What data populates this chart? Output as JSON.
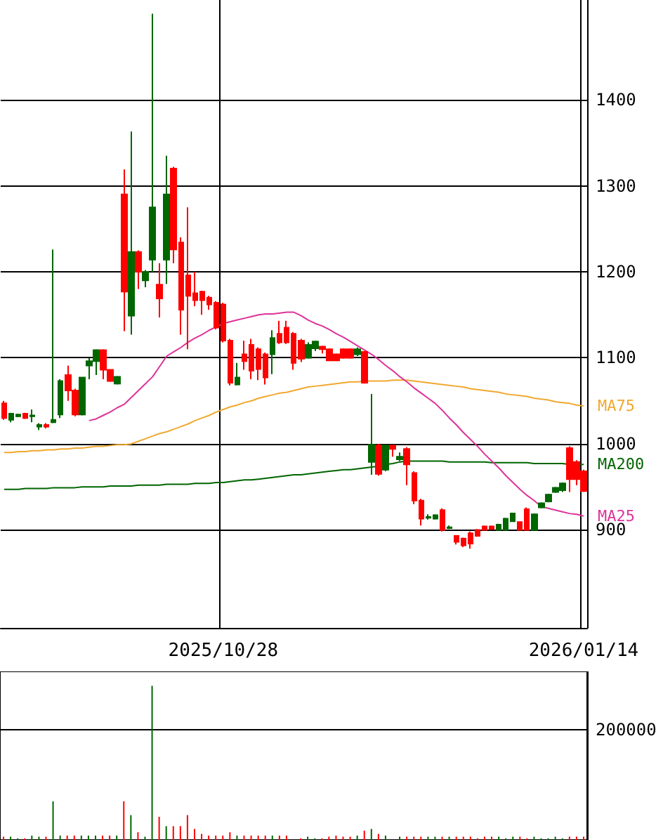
{
  "chart_data": [
    {
      "type": "candlestick",
      "categories": [
        null,
        null,
        null,
        null,
        null,
        null,
        null,
        null,
        null,
        null,
        null,
        null,
        null,
        null,
        null,
        null,
        null,
        null,
        null,
        null,
        null,
        null,
        null,
        null,
        null,
        null,
        null,
        null,
        null,
        null,
        null,
        "2025/10/28",
        null,
        null,
        null,
        null,
        null,
        null,
        null,
        null,
        null,
        null,
        null,
        null,
        null,
        null,
        null,
        null,
        null,
        null,
        null,
        null,
        null,
        null,
        null,
        null,
        null,
        null,
        null,
        null,
        null,
        null,
        null,
        null,
        null,
        null,
        null,
        null,
        null,
        null,
        null,
        null,
        null,
        null,
        null,
        null,
        null,
        null,
        null,
        null,
        null,
        null,
        "2026/01/14"
      ],
      "ylim": [
        786,
        1516
      ],
      "yticks": [
        900,
        1000,
        1100,
        1200,
        1300,
        1400
      ],
      "grid": true,
      "series": [
        {
          "type": "candlestick",
          "ohlc": [
            [
              1047,
              1050,
              1028,
              1030
            ],
            [
              1028,
              1036,
              1025,
              1035
            ],
            [
              1032,
              1035,
              1031,
              1034
            ],
            [
              1035,
              1036,
              1029,
              1030
            ],
            [
              1032,
              1040,
              1025,
              1033
            ],
            [
              1020,
              1024,
              1016,
              1022
            ],
            [
              1022,
              1024,
              1018,
              1020
            ],
            [
              1025,
              1226,
              1024,
              1028
            ],
            [
              1034,
              1075,
              1030,
              1073
            ],
            [
              1080,
              1091,
              1050,
              1062
            ],
            [
              1062,
              1064,
              1032,
              1034
            ],
            [
              1034,
              1078,
              1033,
              1077
            ],
            [
              1091,
              1100,
              1075,
              1096
            ],
            [
              1096,
              1110,
              1080,
              1109
            ],
            [
              1109,
              1110,
              1075,
              1086
            ],
            [
              1086,
              1087,
              1072,
              1073
            ],
            [
              1070,
              1079,
              1069,
              1078
            ],
            [
              1290,
              1319,
              1131,
              1177
            ],
            [
              1149,
              1363,
              1127,
              1223
            ],
            [
              1223,
              1225,
              1180,
              1200
            ],
            [
              1190,
              1202,
              1182,
              1200
            ],
            [
              1214,
              1500,
              1200,
              1275
            ],
            [
              1185,
              1210,
              1147,
              1169
            ],
            [
              1214,
              1335,
              1186,
              1290
            ],
            [
              1320,
              1322,
              1210,
              1226
            ],
            [
              1234,
              1240,
              1127,
              1156
            ],
            [
              1196,
              1275,
              1110,
              1172
            ],
            [
              1175,
              1200,
              1160,
              1167
            ],
            [
              1177,
              1178,
              1150,
              1167
            ],
            [
              1170,
              1172,
              1156,
              1162
            ],
            [
              1164,
              1166,
              1133,
              1135
            ],
            [
              1162,
              1164,
              1118,
              1120
            ],
            [
              1120,
              1122,
              1068,
              1071
            ],
            [
              1069,
              1094,
              1068,
              1077
            ],
            [
              1104,
              1120,
              1086,
              1096
            ],
            [
              1115,
              1122,
              1075,
              1085
            ],
            [
              1110,
              1112,
              1074,
              1087
            ],
            [
              1104,
              1106,
              1069,
              1077
            ],
            [
              1104,
              1132,
              1081,
              1123
            ],
            [
              1128,
              1143,
              1116,
              1118
            ],
            [
              1135,
              1143,
              1116,
              1118
            ],
            [
              1128,
              1130,
              1086,
              1094
            ],
            [
              1120,
              1122,
              1095,
              1099
            ],
            [
              1100,
              1118,
              1099,
              1115
            ],
            [
              1111,
              1120,
              1108,
              1119
            ],
            [
              1113,
              1114,
              1105,
              1110
            ],
            [
              1110,
              1111,
              1096,
              1097
            ],
            [
              1104,
              1105,
              1096,
              1097
            ],
            [
              1110,
              1111,
              1099,
              1100
            ],
            [
              1110,
              1111,
              1099,
              1100
            ],
            [
              1104,
              1112,
              1102,
              1110
            ],
            [
              1107,
              1108,
              1070,
              1071
            ],
            [
              979,
              1058,
              964,
              999
            ],
            [
              998,
              1000,
              963,
              965
            ],
            [
              970,
              999,
              968,
              998
            ],
            [
              998,
              999,
              985,
              994
            ],
            [
              982,
              990,
              980,
              985
            ],
            [
              994,
              996,
              952,
              976
            ],
            [
              966,
              968,
              930,
              934
            ],
            [
              934,
              936,
              905,
              913
            ],
            [
              914,
              918,
              912,
              915
            ],
            [
              913,
              918,
              912,
              917
            ],
            [
              923,
              925,
              898,
              900
            ],
            [
              902,
              905,
              901,
              903
            ],
            [
              893,
              894,
              883,
              886
            ],
            [
              890,
              891,
              880,
              882
            ],
            [
              896,
              898,
              878,
              884
            ],
            [
              900,
              901,
              892,
              893
            ],
            [
              904,
              905,
              899,
              900
            ],
            [
              904,
              905,
              900,
              901
            ],
            [
              900,
              907,
              899,
              906
            ],
            [
              900,
              914,
              899,
              913
            ],
            [
              910,
              920,
              909,
              919
            ],
            [
              909,
              910,
              899,
              900
            ],
            [
              924,
              926,
              899,
              900
            ],
            [
              900,
              919,
              899,
              918
            ],
            [
              926,
              932,
              925,
              931
            ],
            [
              933,
              942,
              932,
              941
            ],
            [
              944,
              950,
              943,
              949
            ],
            [
              946,
              955,
              944,
              954
            ],
            [
              995,
              997,
              944,
              959
            ],
            [
              979,
              981,
              952,
              959
            ],
            [
              968,
              970,
              944,
              945
            ]
          ],
          "colors": [
            "#ff0000",
            "#006600",
            "#006600",
            "#ff0000",
            "#006600",
            "#006600",
            "#ff0000",
            "#006600",
            "#006600",
            "#ff0000",
            "#ff0000",
            "#006600",
            "#006600",
            "#006600",
            "#ff0000",
            "#ff0000",
            "#006600",
            "#ff0000",
            "#006600",
            "#ff0000",
            "#006600",
            "#006600",
            "#ff0000",
            "#006600",
            "#ff0000",
            "#ff0000",
            "#ff0000",
            "#ff0000",
            "#ff0000",
            "#ff0000",
            "#ff0000",
            "#ff0000",
            "#ff0000",
            "#006600",
            "#ff0000",
            "#ff0000",
            "#ff0000",
            "#ff0000",
            "#006600",
            "#ff0000",
            "#ff0000",
            "#ff0000",
            "#ff0000",
            "#006600",
            "#006600",
            "#ff0000",
            "#ff0000",
            "#ff0000",
            "#ff0000",
            "#ff0000",
            "#006600",
            "#ff0000",
            "#006600",
            "#ff0000",
            "#006600",
            "#ff0000",
            "#006600",
            "#ff0000",
            "#ff0000",
            "#ff0000",
            "#006600",
            "#006600",
            "#ff0000",
            "#006600",
            "#ff0000",
            "#ff0000",
            "#ff0000",
            "#ff0000",
            "#ff0000",
            "#ff0000",
            "#006600",
            "#006600",
            "#006600",
            "#ff0000",
            "#ff0000",
            "#006600",
            "#006600",
            "#006600",
            "#006600",
            "#006600",
            "#ff0000",
            "#ff0000",
            "#ff0000"
          ]
        },
        {
          "type": "line",
          "name": "MA75",
          "color": "#f0a830",
          "values": [
            990,
            990,
            991,
            991,
            992,
            992,
            993,
            993,
            994,
            994,
            995,
            995,
            996,
            997,
            997,
            998,
            999,
            999,
            1000,
            1003,
            1006,
            1009,
            1012,
            1014,
            1017,
            1020,
            1023,
            1027,
            1030,
            1033,
            1037,
            1040,
            1043,
            1045,
            1048,
            1050,
            1053,
            1055,
            1057,
            1059,
            1060,
            1062,
            1064,
            1066,
            1067,
            1068,
            1069,
            1070,
            1071,
            1072,
            1072,
            1073,
            1073,
            1073,
            1073,
            1074,
            1074,
            1074,
            1073,
            1072,
            1071,
            1070,
            1069,
            1068,
            1067,
            1066,
            1064,
            1063,
            1062,
            1061,
            1060,
            1058,
            1057,
            1056,
            1055,
            1053,
            1052,
            1051,
            1049,
            1048,
            1047,
            1045,
            1044
          ]
        },
        {
          "type": "line",
          "name": "MA200",
          "color": "#006400",
          "values": [
            947,
            947,
            947,
            948,
            948,
            948,
            948,
            949,
            949,
            949,
            949,
            950,
            950,
            950,
            950,
            951,
            951,
            951,
            951,
            952,
            952,
            952,
            952,
            953,
            953,
            953,
            953,
            954,
            954,
            954,
            955,
            955,
            956,
            957,
            958,
            958,
            959,
            960,
            961,
            962,
            963,
            964,
            964,
            965,
            966,
            967,
            968,
            969,
            970,
            970,
            971,
            972,
            973,
            974,
            976,
            977,
            979,
            980,
            980,
            980,
            980,
            980,
            980,
            979,
            979,
            979,
            979,
            979,
            979,
            978,
            978,
            978,
            978,
            978,
            978,
            977,
            977,
            977,
            977,
            977,
            976,
            976,
            976
          ]
        },
        {
          "type": "line",
          "name": "MA25",
          "color": "#dd3399",
          "values": [
            null,
            null,
            null,
            null,
            null,
            null,
            null,
            null,
            null,
            null,
            null,
            null,
            1027,
            1029,
            1033,
            1037,
            1042,
            1046,
            1054,
            1062,
            1070,
            1078,
            1090,
            1102,
            1107,
            1112,
            1118,
            1123,
            1127,
            1132,
            1136,
            1140,
            1142,
            1144,
            1146,
            1148,
            1150,
            1151,
            1151,
            1152,
            1153,
            1153,
            1149,
            1144,
            1140,
            1137,
            1133,
            1128,
            1124,
            1119,
            1114,
            1109,
            1104,
            1098,
            1091,
            1085,
            1078,
            1072,
            1065,
            1059,
            1053,
            1047,
            1039,
            1030,
            1022,
            1013,
            1005,
            997,
            988,
            980,
            972,
            963,
            955,
            947,
            940,
            934,
            927,
            925,
            923,
            921,
            919,
            918,
            916
          ]
        }
      ],
      "marker": "none"
    },
    {
      "type": "bar",
      "ylim": [
        0,
        305000
      ],
      "yticks": [
        {
          "value": 0,
          "label": null
        },
        200000
      ],
      "grid": "y",
      "tick_labels": "y",
      "categories": [
        null,
        null,
        null,
        null,
        null,
        null,
        null,
        null,
        null,
        null,
        null,
        null,
        null,
        null,
        null,
        null,
        null,
        null,
        null,
        null,
        null,
        null,
        null,
        null,
        null,
        null,
        null,
        null,
        null,
        null,
        null,
        "2025/10/28",
        null,
        null,
        null,
        null,
        null,
        null,
        null,
        null,
        null,
        null,
        null,
        null,
        null,
        null,
        null,
        null,
        null,
        null,
        null,
        null,
        null,
        null,
        null,
        null,
        null,
        null,
        null,
        null,
        null,
        null,
        null,
        null,
        null,
        null,
        null,
        null,
        null,
        null,
        null,
        null,
        null,
        null,
        null,
        null,
        null,
        null,
        null,
        null,
        null,
        null,
        "2026/01/14"
      ],
      "values": [
        6000,
        6000,
        3000,
        3000,
        8000,
        6000,
        6000,
        70000,
        8000,
        8000,
        8000,
        8000,
        8000,
        8000,
        8000,
        8000,
        8000,
        70000,
        45000,
        14000,
        6000,
        279000,
        42000,
        25000,
        25000,
        25000,
        45000,
        20000,
        11000,
        8000,
        8000,
        8000,
        14000,
        8000,
        8000,
        8000,
        8000,
        8000,
        8000,
        8000,
        8000,
        null,
        3000,
        6000,
        3000,
        3000,
        6000,
        8000,
        6000,
        6000,
        8000,
        17000,
        20000,
        11000,
        8000,
        null,
        6000,
        6000,
        6000,
        6000,
        6000,
        6000,
        6000,
        6000,
        6000,
        6000,
        6000,
        3000,
        6000,
        6000,
        6000,
        3000,
        6000,
        6000,
        3000,
        6000,
        3000,
        3000,
        6000,
        3000,
        6000,
        6000,
        6000
      ],
      "colors": [
        "#ff0000",
        "#006600",
        "#006600",
        "#ff0000",
        "#006600",
        "#006600",
        "#ff0000",
        "#006600",
        "#006600",
        "#ff0000",
        "#ff0000",
        "#006600",
        "#006600",
        "#006600",
        "#ff0000",
        "#ff0000",
        "#006600",
        "#ff0000",
        "#006600",
        "#ff0000",
        "#006600",
        "#006600",
        "#ff0000",
        "#006600",
        "#ff0000",
        "#ff0000",
        "#ff0000",
        "#ff0000",
        "#ff0000",
        "#ff0000",
        "#ff0000",
        "#ff0000",
        "#ff0000",
        "#006600",
        "#ff0000",
        "#ff0000",
        "#ff0000",
        "#ff0000",
        "#006600",
        "#ff0000",
        "#ff0000",
        "#ff0000",
        "#ff0000",
        "#006600",
        "#006600",
        "#ff0000",
        "#ff0000",
        "#ff0000",
        "#ff0000",
        "#ff0000",
        "#006600",
        "#ff0000",
        "#006600",
        "#ff0000",
        "#006600",
        "#ff0000",
        "#006600",
        "#ff0000",
        "#ff0000",
        "#ff0000",
        "#006600",
        "#006600",
        "#ff0000",
        "#006600",
        "#ff0000",
        "#ff0000",
        "#ff0000",
        "#ff0000",
        "#ff0000",
        "#ff0000",
        "#006600",
        "#006600",
        "#006600",
        "#ff0000",
        "#ff0000",
        "#006600",
        "#006600",
        "#006600",
        "#006600",
        "#006600",
        "#ff0000",
        "#ff0000",
        "#ff0000"
      ]
    }
  ]
}
